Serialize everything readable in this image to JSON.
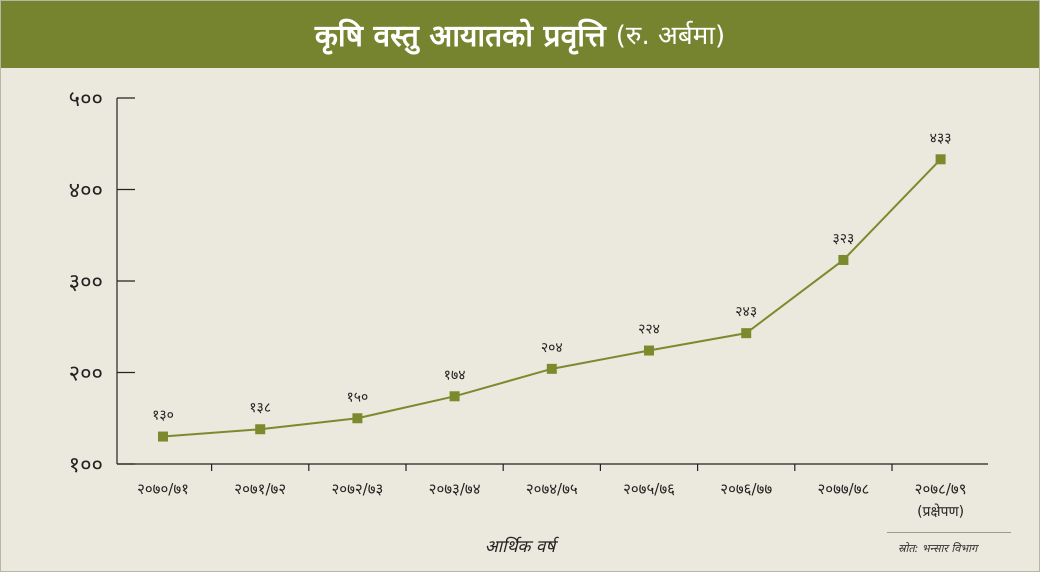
{
  "title": "कृषि वस्तु आयातको प्रवृत्ति",
  "title_unit": "(रु. अर्बमा)",
  "source": "स्रोत: भन्सार विभाग",
  "colors": {
    "header": "#768430",
    "line": "#7c8a2e",
    "background": "#ebe9dd",
    "axis": "#222222"
  },
  "chart_data": {
    "type": "line",
    "title": "कृषि वस्तु आयातको प्रवृत्ति (रु. अर्बमा)",
    "xlabel": "आर्थिक वर्ष",
    "ylabel": "",
    "ylim": [
      100,
      500
    ],
    "yticks": [
      100,
      200,
      300,
      400,
      500
    ],
    "ytick_labels": [
      "१००",
      "२००",
      "३००",
      "४००",
      "५००"
    ],
    "grid": false,
    "categories": [
      "२०७०/७१",
      "२०७१/७२",
      "२०७२/७३",
      "२०७३/७४",
      "२०७४/७५",
      "२०७५/७६",
      "२०७६/७७",
      "२०७७/७८",
      "२०७८/७९"
    ],
    "category_notes": [
      "",
      "",
      "",
      "",
      "",
      "",
      "",
      "",
      "(प्रक्षेपण)"
    ],
    "values": [
      130,
      138,
      150,
      174,
      204,
      224,
      243,
      323,
      433
    ],
    "value_labels": [
      "१३०",
      "१३८",
      "१५०",
      "१७४",
      "२०४",
      "२२४",
      "२४३",
      "३२३",
      "४३३"
    ]
  }
}
